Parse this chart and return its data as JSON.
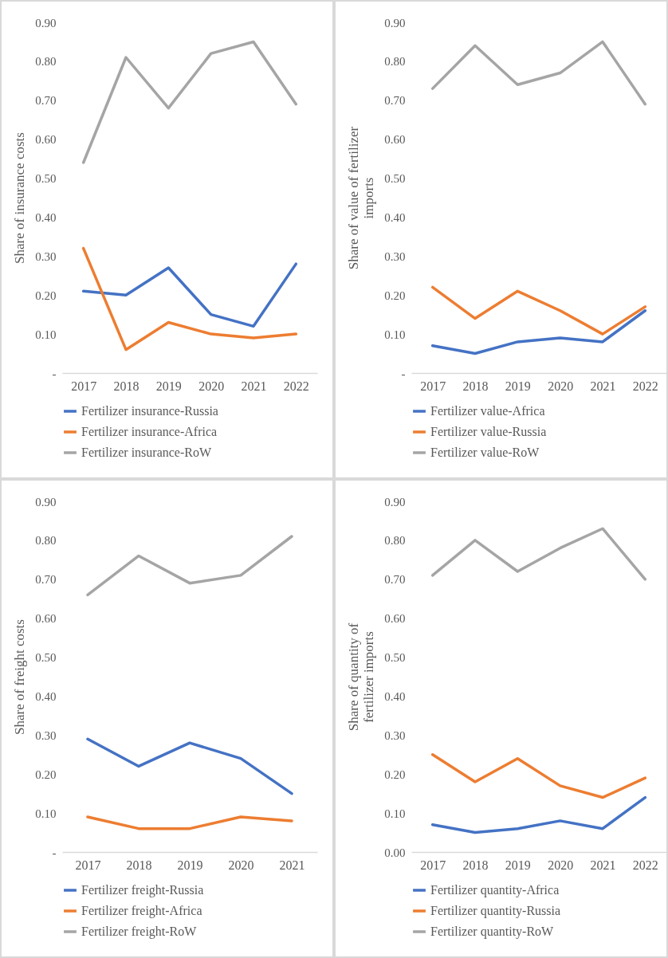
{
  "chart_data": [
    {
      "type": "line",
      "ylabel": "Share of insurance costs",
      "categories": [
        "2017",
        "2018",
        "2019",
        "2020",
        "2021",
        "2022"
      ],
      "series": [
        {
          "name": "Fertilizer insurance-Russia",
          "color": "#4472c4",
          "values": [
            0.21,
            0.2,
            0.27,
            0.15,
            0.12,
            0.28
          ]
        },
        {
          "name": "Fertilizer insurance-Africa",
          "color": "#ed7d31",
          "values": [
            0.32,
            0.06,
            0.13,
            0.1,
            0.09,
            0.1
          ]
        },
        {
          "name": "Fertilizer insurance-RoW",
          "color": "#a5a5a5",
          "values": [
            0.54,
            0.81,
            0.68,
            0.82,
            0.85,
            0.69
          ]
        }
      ],
      "ylim": [
        0,
        0.9
      ],
      "yticks": [
        {
          "value": 0,
          "label": "-"
        },
        {
          "value": 0.1,
          "label": "0.10"
        },
        {
          "value": 0.2,
          "label": "0.20"
        },
        {
          "value": 0.3,
          "label": "0.30"
        },
        {
          "value": 0.4,
          "label": "0.40"
        },
        {
          "value": 0.5,
          "label": "0.50"
        },
        {
          "value": 0.6,
          "label": "0.60"
        },
        {
          "value": 0.7,
          "label": "0.70"
        },
        {
          "value": 0.8,
          "label": "0.80"
        },
        {
          "value": 0.9,
          "label": "0.90"
        }
      ],
      "grid": false,
      "legend": "bottom",
      "marker": "none"
    },
    {
      "type": "line",
      "ylabel": "Share of value of fertilizer imports",
      "categories": [
        "2017",
        "2018",
        "2019",
        "2020",
        "2021",
        "2022"
      ],
      "series": [
        {
          "name": "Fertilizer value-Africa",
          "color": "#4472c4",
          "values": [
            0.07,
            0.05,
            0.08,
            0.09,
            0.08,
            0.16
          ]
        },
        {
          "name": "Fertilizer value-Russia",
          "color": "#ed7d31",
          "values": [
            0.22,
            0.14,
            0.21,
            0.16,
            0.1,
            0.17
          ]
        },
        {
          "name": "Fertilizer value-RoW",
          "color": "#a5a5a5",
          "values": [
            0.73,
            0.84,
            0.74,
            0.77,
            0.85,
            0.69
          ]
        }
      ],
      "ylim": [
        0,
        0.9
      ],
      "yticks": [
        {
          "value": 0,
          "label": "-"
        },
        {
          "value": 0.1,
          "label": "0.10"
        },
        {
          "value": 0.2,
          "label": "0.20"
        },
        {
          "value": 0.3,
          "label": "0.30"
        },
        {
          "value": 0.4,
          "label": "0.40"
        },
        {
          "value": 0.5,
          "label": "0.50"
        },
        {
          "value": 0.6,
          "label": "0.60"
        },
        {
          "value": 0.7,
          "label": "0.70"
        },
        {
          "value": 0.8,
          "label": "0.80"
        },
        {
          "value": 0.9,
          "label": "0.90"
        }
      ],
      "grid": false,
      "legend": "bottom",
      "marker": "none"
    },
    {
      "type": "line",
      "ylabel": "Share of freight costs",
      "categories": [
        "2017",
        "2018",
        "2019",
        "2020",
        "2021"
      ],
      "series": [
        {
          "name": "Fertilizer freight-Russia",
          "color": "#4472c4",
          "values": [
            0.29,
            0.22,
            0.28,
            0.24,
            0.15
          ]
        },
        {
          "name": "Fertilizer freight-Africa",
          "color": "#ed7d31",
          "values": [
            0.09,
            0.06,
            0.06,
            0.09,
            0.08
          ]
        },
        {
          "name": "Fertilizer freight-RoW",
          "color": "#a5a5a5",
          "values": [
            0.66,
            0.76,
            0.69,
            0.71,
            0.81
          ]
        }
      ],
      "ylim": [
        0,
        0.9
      ],
      "yticks": [
        {
          "value": 0,
          "label": "-"
        },
        {
          "value": 0.1,
          "label": "0.10"
        },
        {
          "value": 0.2,
          "label": "0.20"
        },
        {
          "value": 0.3,
          "label": "0.30"
        },
        {
          "value": 0.4,
          "label": "0.40"
        },
        {
          "value": 0.5,
          "label": "0.50"
        },
        {
          "value": 0.6,
          "label": "0.60"
        },
        {
          "value": 0.7,
          "label": "0.70"
        },
        {
          "value": 0.8,
          "label": "0.80"
        },
        {
          "value": 0.9,
          "label": "0.90"
        }
      ],
      "grid": false,
      "legend": "bottom",
      "marker": "none"
    },
    {
      "type": "line",
      "ylabel": "Share of quantity of fertilizer imports",
      "categories": [
        "2017",
        "2018",
        "2019",
        "2020",
        "2021",
        "2022"
      ],
      "series": [
        {
          "name": "Fertilizer quantity-Africa",
          "color": "#4472c4",
          "values": [
            0.07,
            0.05,
            0.06,
            0.08,
            0.06,
            0.14
          ]
        },
        {
          "name": "Fertilizer quantity-Russia",
          "color": "#ed7d31",
          "values": [
            0.25,
            0.18,
            0.24,
            0.17,
            0.14,
            0.19
          ]
        },
        {
          "name": "Fertilizer quantity-RoW",
          "color": "#a5a5a5",
          "values": [
            0.71,
            0.8,
            0.72,
            0.78,
            0.83,
            0.7
          ]
        }
      ],
      "ylim": [
        0,
        0.9
      ],
      "yticks": [
        {
          "value": 0,
          "label": "0.00"
        },
        {
          "value": 0.1,
          "label": "0.10"
        },
        {
          "value": 0.2,
          "label": "0.20"
        },
        {
          "value": 0.3,
          "label": "0.30"
        },
        {
          "value": 0.4,
          "label": "0.40"
        },
        {
          "value": 0.5,
          "label": "0.50"
        },
        {
          "value": 0.6,
          "label": "0.60"
        },
        {
          "value": 0.7,
          "label": "0.70"
        },
        {
          "value": 0.8,
          "label": "0.80"
        },
        {
          "value": 0.9,
          "label": "0.90"
        }
      ],
      "grid": false,
      "legend": "bottom",
      "marker": "none"
    }
  ]
}
